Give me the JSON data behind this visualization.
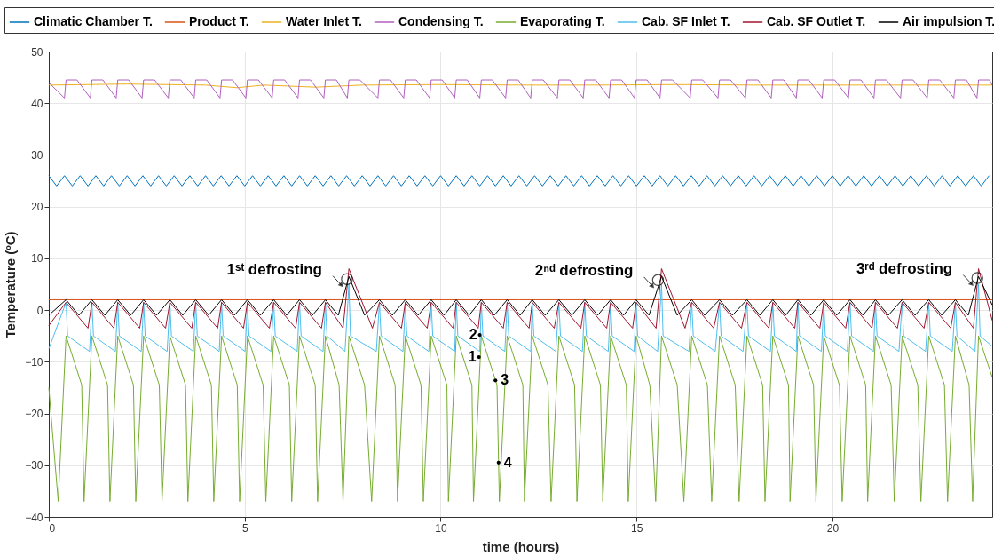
{
  "chart_data": {
    "type": "line",
    "xlabel": "time (hours)",
    "ylabel": "Temperature (ºC)",
    "legend": "top",
    "grid": true,
    "xlim": [
      0,
      24.08
    ],
    "ylim": [
      -40,
      50
    ],
    "xticks": [
      0,
      5,
      10,
      15,
      20
    ],
    "yticks": [
      -40,
      -30,
      -20,
      -10,
      0,
      10,
      20,
      30,
      40,
      50
    ],
    "series": [
      {
        "name": "Climatic Chamber T.",
        "color": "#0072bd",
        "x": [
          0,
          0.2,
          0.4,
          0.6,
          0.8,
          1,
          1.2,
          1.4,
          1.6,
          1.8,
          2,
          2.2,
          2.4,
          2.6,
          2.8,
          3,
          3.2,
          3.4,
          3.6,
          3.8,
          4,
          4.2,
          4.4,
          4.6,
          4.8,
          5,
          5.2,
          5.4,
          5.6,
          5.8,
          6,
          6.2,
          6.4,
          6.6,
          6.8,
          7,
          7.2,
          7.4,
          7.6,
          7.8,
          8,
          8.2,
          8.4,
          8.6,
          8.8,
          9,
          9.2,
          9.4,
          9.6,
          9.8,
          10,
          10.2,
          10.4,
          10.6,
          10.8,
          11,
          11.2,
          11.4,
          11.6,
          11.8,
          12,
          12.2,
          12.4,
          12.6,
          12.8,
          13,
          13.2,
          13.4,
          13.6,
          13.8,
          14,
          14.2,
          14.4,
          14.6,
          14.8,
          15,
          15.2,
          15.4,
          15.6,
          15.8,
          16,
          16.2,
          16.4,
          16.6,
          16.8,
          17,
          17.2,
          17.4,
          17.6,
          17.8,
          18,
          18.2,
          18.4,
          18.6,
          18.8,
          19,
          19.2,
          19.4,
          19.6,
          19.8,
          20,
          20.2,
          20.4,
          20.6,
          20.8,
          21,
          21.2,
          21.4,
          21.6,
          21.8,
          22,
          22.2,
          22.4,
          22.6,
          22.8,
          23,
          23.2,
          23.4,
          23.6,
          23.8,
          24
        ],
        "values": [
          26,
          24,
          26,
          24,
          26,
          24,
          26,
          24,
          26,
          24,
          26,
          24,
          26,
          24,
          26,
          24,
          26,
          24,
          26,
          24,
          26,
          24,
          26,
          24,
          26,
          24,
          26,
          24,
          26,
          24,
          26,
          24,
          26,
          24,
          26,
          24,
          26,
          24,
          26,
          24,
          26,
          24,
          26,
          24,
          26,
          24,
          26,
          24,
          26,
          24,
          26,
          24,
          26,
          24,
          26,
          24,
          26,
          24,
          26,
          24,
          26,
          24,
          26,
          24,
          26,
          24,
          26,
          24,
          26,
          24,
          26,
          24,
          26,
          24,
          26,
          24,
          26,
          24,
          26,
          24,
          26,
          24,
          26,
          24,
          26,
          24,
          26,
          24,
          26,
          24,
          26,
          24,
          26,
          24,
          26,
          24,
          26,
          24,
          26,
          24,
          26,
          24,
          26,
          24,
          26,
          24,
          26,
          24,
          26,
          24,
          26,
          24,
          26,
          24,
          26,
          24,
          26,
          24,
          26,
          24,
          26
        ]
      },
      {
        "name": "Product T.",
        "color": "#d95319",
        "x": [
          0,
          6,
          12,
          18,
          24.08
        ],
        "values": [
          2,
          2,
          2,
          2,
          2
        ]
      },
      {
        "name": "Water Inlet T.",
        "color": "#edb120",
        "x": [
          0,
          2,
          4,
          4.8,
          5.5,
          6.8,
          8,
          10,
          12,
          14,
          16,
          18,
          20,
          22,
          24.08
        ],
        "values": [
          43.5,
          43.7,
          43.5,
          43,
          43.5,
          43.1,
          43.5,
          43.6,
          43.5,
          43.5,
          43.6,
          43.5,
          43.5,
          43.5,
          43.5
        ]
      },
      {
        "name": "Condensing T.",
        "color": "#b05fbd",
        "x": [
          0,
          0.4,
          0.44,
          0.72,
          1.06,
          1.1,
          1.38,
          1.72,
          1.76,
          2.04,
          2.38,
          2.42,
          2.7,
          3.05,
          3.09,
          3.37,
          3.71,
          3.75,
          4.03,
          4.37,
          4.41,
          4.69,
          5.03,
          5.07,
          5.35,
          5.7,
          5.74,
          6.02,
          6.36,
          6.4,
          6.68,
          7.02,
          7.06,
          7.34,
          7.62,
          7.66,
          7.94,
          8.4,
          8.44,
          8.72,
          9.06,
          9.1,
          9.38,
          9.72,
          9.76,
          10.04,
          10.36,
          10.4,
          10.68,
          11.0,
          11.04,
          11.32,
          11.66,
          11.7,
          11.98,
          12.3,
          12.34,
          12.62,
          12.98,
          13.02,
          13.3,
          13.64,
          13.68,
          13.96,
          14.3,
          14.34,
          14.62,
          14.95,
          14.99,
          15.27,
          15.6,
          15.64,
          15.92,
          16.37,
          16.41,
          16.69,
          17.08,
          17.12,
          17.4,
          17.78,
          17.82,
          18.1,
          18.44,
          18.48,
          18.76,
          19.08,
          19.12,
          19.4,
          19.74,
          19.78,
          20.06,
          20.41,
          20.45,
          20.73,
          21.06,
          21.1,
          21.38,
          21.74,
          21.78,
          22.06,
          22.42,
          22.46,
          22.74,
          23.1,
          23.14,
          23.42,
          23.69,
          23.73,
          24.01,
          24.08
        ],
        "values": [
          44,
          41,
          44.5,
          44.5,
          41,
          44.5,
          44.5,
          41,
          44.5,
          44.5,
          41,
          44.5,
          44.5,
          41,
          44.5,
          44.5,
          41,
          44.5,
          44.5,
          41,
          44.5,
          44.5,
          41,
          44.5,
          44.5,
          41,
          44.5,
          44.5,
          41,
          44.5,
          44.5,
          41,
          44.5,
          44.5,
          41,
          44.5,
          44.5,
          41,
          44.5,
          44.5,
          41,
          44.5,
          44.5,
          41,
          44.5,
          44.5,
          41,
          44.5,
          44.5,
          41,
          44.5,
          44.5,
          41,
          44.5,
          44.5,
          41,
          44.5,
          44.5,
          41,
          44.5,
          44.5,
          41,
          44.5,
          44.5,
          41,
          44.5,
          44.5,
          41,
          44.5,
          44.5,
          41,
          44.5,
          44.5,
          41,
          44.5,
          44.5,
          41,
          44.5,
          44.5,
          41,
          44.5,
          44.5,
          41,
          44.5,
          44.5,
          41,
          44.5,
          44.5,
          41,
          44.5,
          44.5,
          41,
          44.5,
          44.5,
          41,
          44.5,
          44.5,
          41,
          44.5,
          44.5,
          41,
          44.5,
          44.5,
          41,
          44.5,
          44.5,
          41,
          44.5,
          44.5,
          43.5
        ]
      },
      {
        "name": "Evaporating T.",
        "color": "#77ac30",
        "x": [
          0,
          0.24,
          0.44,
          0.84,
          0.9,
          1.1,
          1.5,
          1.56,
          1.76,
          2.16,
          2.22,
          2.42,
          2.82,
          2.89,
          3.09,
          3.49,
          3.55,
          3.75,
          4.15,
          4.21,
          4.41,
          4.81,
          4.87,
          5.07,
          5.47,
          5.54,
          5.74,
          6.14,
          6.2,
          6.4,
          6.8,
          6.86,
          7.06,
          7.41,
          7.51,
          7.66,
          8.06,
          8.24,
          8.44,
          8.84,
          8.9,
          9.1,
          9.5,
          9.56,
          9.76,
          10.16,
          10.2,
          10.4,
          10.8,
          10.84,
          11.04,
          11.44,
          11.5,
          11.7,
          12.1,
          12.14,
          12.34,
          12.74,
          12.82,
          13.02,
          13.42,
          13.48,
          13.68,
          14.08,
          14.14,
          14.34,
          14.74,
          14.79,
          14.99,
          15.34,
          15.49,
          15.64,
          16.04,
          16.21,
          16.41,
          16.81,
          16.92,
          17.12,
          17.52,
          17.62,
          17.82,
          18.22,
          18.28,
          18.48,
          18.88,
          18.92,
          19.12,
          19.52,
          19.58,
          19.78,
          20.18,
          20.25,
          20.45,
          20.85,
          20.9,
          21.1,
          21.5,
          21.58,
          21.78,
          22.18,
          22.26,
          22.46,
          22.86,
          22.94,
          23.14,
          23.49,
          23.58,
          23.73,
          24.08
        ],
        "values": [
          -15,
          -37,
          -5,
          -14.5,
          -37,
          -5,
          -14.5,
          -37,
          -5,
          -14.5,
          -37,
          -5,
          -14.5,
          -37,
          -5,
          -14.5,
          -37,
          -5,
          -14.5,
          -37,
          -5,
          -14.5,
          -37,
          -5,
          -14.5,
          -37,
          -5,
          -14.5,
          -37,
          -5,
          -14.5,
          -37,
          -5,
          -14.5,
          -37,
          -5,
          -14.5,
          -37,
          -5,
          -14.5,
          -37,
          -5,
          -14.5,
          -37,
          -5,
          -14.5,
          -37,
          -5,
          -14.5,
          -37,
          -5,
          -14.5,
          -37,
          -5,
          -14.5,
          -37,
          -5,
          -14.5,
          -37,
          -5,
          -14.5,
          -37,
          -5,
          -14.5,
          -37,
          -5,
          -14.5,
          -37,
          -5,
          -14.5,
          -37,
          -5,
          -14.5,
          -37,
          -5,
          -14.5,
          -37,
          -5,
          -14.5,
          -37,
          -5,
          -14.5,
          -37,
          -5,
          -14.5,
          -37,
          -5,
          -14.5,
          -37,
          -5,
          -14.5,
          -37,
          -5,
          -14.5,
          -37,
          -5,
          -14.5,
          -37,
          -5,
          -14.5,
          -37,
          -5,
          -14.5,
          -37,
          -5,
          -14.5,
          -37,
          -5,
          -13
        ]
      },
      {
        "name": "Cab. SF Inlet T.",
        "color": "#4dbeee",
        "x": [
          0,
          0.44,
          0.48,
          1.04,
          1.1,
          1.14,
          1.7,
          1.76,
          1.8,
          2.36,
          2.42,
          2.46,
          3.02,
          3.09,
          3.13,
          3.69,
          3.75,
          3.79,
          4.35,
          4.41,
          4.45,
          5.01,
          5.07,
          5.11,
          5.67,
          5.74,
          5.78,
          6.34,
          6.4,
          6.44,
          7.0,
          7.06,
          7.1,
          7.56,
          7.66,
          7.7,
          8.36,
          8.44,
          8.48,
          9.04,
          9.1,
          9.14,
          9.7,
          9.76,
          9.8,
          10.36,
          10.4,
          10.44,
          11.0,
          11.04,
          11.08,
          11.64,
          11.7,
          11.74,
          12.3,
          12.34,
          12.38,
          12.94,
          13.02,
          13.06,
          13.62,
          13.68,
          13.72,
          14.28,
          14.34,
          14.38,
          14.94,
          14.99,
          15.03,
          15.54,
          15.64,
          15.68,
          16.34,
          16.41,
          16.45,
          17.01,
          17.12,
          17.16,
          17.72,
          17.82,
          17.86,
          18.42,
          18.48,
          18.52,
          19.08,
          19.12,
          19.16,
          19.72,
          19.78,
          19.82,
          20.38,
          20.45,
          20.49,
          21.05,
          21.1,
          21.14,
          21.7,
          21.78,
          21.82,
          22.38,
          22.46,
          22.5,
          23.06,
          23.14,
          23.18,
          23.64,
          23.73,
          23.77,
          24.08
        ],
        "values": [
          -7.5,
          1.5,
          -5,
          -8,
          1.5,
          -5,
          -8,
          1.5,
          -5,
          -8,
          1.5,
          -5,
          -8,
          1.5,
          -5,
          -8,
          1.5,
          -5,
          -8,
          1.5,
          -5,
          -8,
          1.5,
          -5,
          -8,
          1.5,
          -5,
          -8,
          1.5,
          -5,
          -8,
          1.5,
          -5,
          -8,
          5,
          -5,
          -8,
          1.5,
          -5,
          -8,
          1.5,
          -5,
          -8,
          1.5,
          -5,
          -8,
          1.5,
          -5,
          -8,
          1.5,
          -5,
          -8,
          1.5,
          -5,
          -8,
          1.5,
          -5,
          -8,
          1.5,
          -5,
          -8,
          1.5,
          -5,
          -8,
          1.5,
          -5,
          -8,
          1.5,
          -5,
          -8,
          5,
          -5,
          -8,
          1.5,
          -5,
          -8,
          1.5,
          -5,
          -8,
          1.5,
          -5,
          -8,
          1.5,
          -5,
          -8,
          1.5,
          -5,
          -8,
          1.5,
          -5,
          -8,
          1.5,
          -5,
          -8,
          1.5,
          -5,
          -8,
          1.5,
          -5,
          -8,
          1.5,
          -5,
          -8,
          1.5,
          -5,
          -8,
          5,
          -5,
          -7
        ]
      },
      {
        "name": "Cab. SF Outlet T.",
        "color": "#a2142f",
        "x": [
          0,
          0.44,
          1.0,
          1.1,
          1.66,
          1.76,
          2.32,
          2.42,
          2.98,
          3.09,
          3.65,
          3.75,
          4.31,
          4.41,
          4.97,
          5.07,
          5.63,
          5.74,
          6.3,
          6.4,
          6.96,
          7.06,
          7.51,
          7.66,
          8.26,
          8.44,
          9.0,
          9.1,
          9.66,
          9.76,
          10.32,
          10.4,
          10.96,
          11.04,
          11.6,
          11.7,
          12.26,
          12.34,
          12.9,
          13.02,
          13.58,
          13.68,
          14.24,
          14.34,
          14.9,
          14.99,
          15.5,
          15.64,
          16.24,
          16.41,
          16.97,
          17.12,
          17.68,
          17.82,
          18.38,
          18.48,
          19.04,
          19.12,
          19.68,
          19.78,
          20.34,
          20.45,
          21.01,
          21.1,
          21.66,
          21.78,
          22.34,
          22.46,
          23.02,
          23.14,
          23.6,
          23.73,
          24.08
        ],
        "values": [
          -3,
          1.5,
          -3.5,
          1.5,
          -3.5,
          1.5,
          -3.5,
          1.5,
          -3.5,
          1.5,
          -3.5,
          1.5,
          -3.5,
          1.5,
          -3.5,
          1.5,
          -3.5,
          1.5,
          -3.5,
          1.5,
          -3.5,
          1.5,
          -3.5,
          8,
          -3.5,
          1.5,
          -3.5,
          1.5,
          -3.5,
          1.5,
          -3.5,
          1.5,
          -3.5,
          1.5,
          -3.5,
          1.5,
          -3.5,
          1.5,
          -3.5,
          1.5,
          -3.5,
          1.5,
          -3.5,
          1.5,
          -3.5,
          1.5,
          -3.5,
          8,
          -3.5,
          1.5,
          -3.5,
          1.5,
          -3.5,
          1.5,
          -3.5,
          1.5,
          -3.5,
          1.5,
          -3.5,
          1.5,
          -3.5,
          1.5,
          -3.5,
          1.5,
          -3.5,
          1.5,
          -3.5,
          1.5,
          -3.5,
          1.5,
          -3.5,
          8,
          -2
        ]
      },
      {
        "name": "Air impulsion T.",
        "color": "#000000",
        "x": [
          0,
          0.44,
          0.77,
          1.1,
          1.43,
          1.76,
          2.09,
          2.42,
          2.75,
          3.09,
          3.42,
          3.75,
          4.08,
          4.41,
          4.74,
          5.07,
          5.4,
          5.74,
          6.07,
          6.4,
          6.73,
          7.06,
          7.39,
          7.66,
          8.06,
          8.44,
          8.77,
          9.1,
          9.43,
          9.76,
          10.09,
          10.4,
          10.73,
          11.04,
          11.37,
          11.7,
          12.03,
          12.34,
          12.67,
          13.02,
          13.35,
          13.68,
          14.01,
          14.34,
          14.67,
          14.99,
          15.32,
          15.64,
          16.04,
          16.41,
          16.74,
          17.12,
          17.45,
          17.82,
          18.15,
          18.48,
          18.81,
          19.12,
          19.45,
          19.78,
          20.11,
          20.45,
          20.78,
          21.1,
          21.43,
          21.78,
          22.11,
          22.46,
          22.79,
          23.14,
          23.47,
          23.73,
          24.08
        ],
        "values": [
          -1,
          2,
          -1,
          2,
          -1,
          2,
          -1,
          2,
          -1,
          2,
          -1,
          2,
          -1,
          2,
          -1,
          2,
          -1,
          2,
          -1,
          2,
          -1,
          2,
          -1,
          6.5,
          -1,
          2,
          -1,
          2,
          -1,
          2,
          -1,
          2,
          -1,
          2,
          -1,
          2,
          -1,
          2,
          -1,
          2,
          -1,
          2,
          -1,
          2,
          -1,
          2,
          -1,
          6.5,
          -1,
          2,
          -1,
          2,
          -1,
          2,
          -1,
          2,
          -1,
          2,
          -1,
          2,
          -1,
          2,
          -1,
          2,
          -1,
          2,
          -1,
          2,
          -1,
          2,
          -1,
          6.5,
          1
        ]
      }
    ],
    "annotations": [
      {
        "text": "1ˢᵗ defrosting",
        "x": 7.61,
        "y": 6
      },
      {
        "text": "2ⁿᵈ defrosting",
        "x": 15.55,
        "y": 5.8
      },
      {
        "text": "3ʳᵈ defrosting",
        "x": 23.7,
        "y": 6.2
      },
      {
        "text": "1",
        "x": 10.98,
        "y": -9.1
      },
      {
        "text": "2",
        "x": 11.0,
        "y": -4.8
      },
      {
        "text": "3",
        "x": 11.4,
        "y": -13.6
      },
      {
        "text": "4",
        "x": 11.48,
        "y": -29.5
      }
    ]
  }
}
